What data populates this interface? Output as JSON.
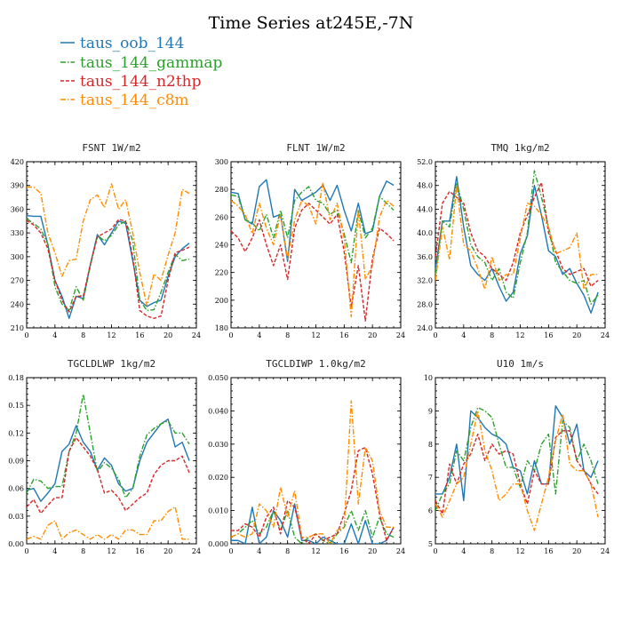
{
  "title": "Time Series at245E,-7N",
  "colors": {
    "taus_oob_144": "#1f77b4",
    "taus_144_gammap": "#2ca02c",
    "taus_144_n2thp": "#d62728",
    "taus_144_c8m": "#ff8c00"
  },
  "legend": [
    {
      "name": "taus_oob_144",
      "color": "#1f77b4",
      "style": "solid"
    },
    {
      "name": "taus_144_gammap",
      "color": "#2ca02c",
      "style": "dashdot"
    },
    {
      "name": "taus_144_n2thp",
      "color": "#d62728",
      "style": "dashed"
    },
    {
      "name": "taus_144_c8m",
      "color": "#ff8c00",
      "style": "dashdot"
    }
  ],
  "chart_data": [
    {
      "type": "line",
      "title": "FSNT   1W/m2",
      "x": [
        0,
        1,
        2,
        3,
        4,
        5,
        6,
        7,
        8,
        9,
        10,
        11,
        12,
        13,
        14,
        15,
        16,
        17,
        18,
        19,
        20,
        21,
        22,
        23
      ],
      "xlim": [
        0,
        24
      ],
      "xticks": [
        "0",
        "4",
        "8",
        "12",
        "16",
        "20",
        "24"
      ],
      "ylim": [
        210,
        420
      ],
      "yticks": [
        "210",
        "240",
        "270",
        "300",
        "330",
        "360",
        "390",
        "420"
      ],
      "series": [
        {
          "name": "taus_oob_144",
          "values": [
            352,
            351,
            351,
            315,
            270,
            250,
            222,
            250,
            247,
            290,
            328,
            315,
            330,
            345,
            342,
            295,
            245,
            237,
            242,
            245,
            275,
            300,
            310,
            317
          ]
        },
        {
          "name": "taus_144_gammap",
          "values": [
            348,
            342,
            335,
            316,
            262,
            240,
            232,
            262,
            245,
            288,
            327,
            320,
            327,
            340,
            345,
            320,
            245,
            232,
            233,
            255,
            280,
            303,
            295,
            297
          ]
        },
        {
          "name": "taus_144_n2thp",
          "values": [
            346,
            340,
            330,
            310,
            270,
            245,
            230,
            250,
            250,
            290,
            325,
            330,
            335,
            347,
            345,
            300,
            232,
            225,
            222,
            225,
            270,
            305,
            308,
            312
          ]
        },
        {
          "name": "taus_144_c8m",
          "values": [
            388,
            388,
            380,
            330,
            305,
            275,
            295,
            297,
            345,
            372,
            378,
            362,
            392,
            360,
            372,
            330,
            280,
            238,
            278,
            270,
            302,
            330,
            385,
            380
          ]
        }
      ]
    },
    {
      "type": "line",
      "title": "FLNT   1W/m2",
      "x": [
        0,
        1,
        2,
        3,
        4,
        5,
        6,
        7,
        8,
        9,
        10,
        11,
        12,
        13,
        14,
        15,
        16,
        17,
        18,
        19,
        20,
        21,
        22,
        23
      ],
      "xlim": [
        0,
        24
      ],
      "xticks": [
        "0",
        "4",
        "8",
        "12",
        "16",
        "20",
        "24"
      ],
      "ylim": [
        180,
        300
      ],
      "yticks": [
        "180",
        "200",
        "220",
        "240",
        "260",
        "280",
        "300"
      ],
      "series": [
        {
          "name": "taus_oob_144",
          "values": [
            278,
            277,
            258,
            255,
            282,
            287,
            260,
            262,
            228,
            280,
            272,
            275,
            278,
            283,
            272,
            283,
            265,
            250,
            270,
            248,
            250,
            275,
            286,
            283
          ]
        },
        {
          "name": "taus_144_gammap",
          "values": [
            276,
            275,
            258,
            256,
            250,
            262,
            245,
            265,
            245,
            272,
            278,
            282,
            272,
            270,
            262,
            265,
            248,
            227,
            265,
            245,
            252,
            275,
            270,
            265
          ]
        },
        {
          "name": "taus_144_n2thp",
          "values": [
            250,
            245,
            235,
            245,
            258,
            240,
            225,
            240,
            215,
            252,
            265,
            270,
            265,
            260,
            255,
            262,
            235,
            195,
            225,
            185,
            230,
            252,
            248,
            243
          ]
        },
        {
          "name": "taus_144_c8m",
          "values": [
            272,
            268,
            262,
            248,
            270,
            252,
            240,
            262,
            230,
            258,
            272,
            268,
            255,
            285,
            258,
            270,
            245,
            188,
            265,
            215,
            225,
            260,
            272,
            268
          ]
        }
      ]
    },
    {
      "type": "line",
      "title": "TMQ   1kg/m2",
      "x": [
        0,
        1,
        2,
        3,
        4,
        5,
        6,
        7,
        8,
        9,
        10,
        11,
        12,
        13,
        14,
        15,
        16,
        17,
        18,
        19,
        20,
        21,
        22,
        23
      ],
      "xlim": [
        0,
        24
      ],
      "xticks": [
        "0",
        "4",
        "8",
        "12",
        "16",
        "20",
        "24"
      ],
      "ylim": [
        24,
        52
      ],
      "yticks": [
        "24.0",
        "28.0",
        "32.0",
        "36.0",
        "40.0",
        "44.0",
        "48.0",
        "52.0"
      ],
      "series": [
        {
          "name": "taus_oob_144",
          "values": [
            34,
            42,
            42,
            49.5,
            41,
            34.5,
            33,
            32,
            34,
            31,
            28.5,
            30,
            36.5,
            39.5,
            48,
            43,
            37,
            36,
            33,
            34,
            31.5,
            29.5,
            26.5,
            30
          ]
        },
        {
          "name": "taus_144_gammap",
          "values": [
            33,
            42,
            41,
            48.5,
            44,
            38,
            36,
            35,
            32,
            34,
            30,
            29,
            35,
            40,
            50.5,
            46,
            41,
            35,
            33.5,
            32,
            31.5,
            32,
            28,
            29.5
          ]
        },
        {
          "name": "taus_144_n2thp",
          "values": [
            36,
            45,
            47,
            46,
            45,
            40,
            37,
            36,
            34,
            33,
            32,
            35,
            40,
            43,
            46,
            48.5,
            40,
            37,
            34,
            33,
            33.5,
            34,
            31,
            32
          ]
        },
        {
          "name": "taus_144_c8m",
          "values": [
            32,
            41,
            35.5,
            48,
            38,
            37,
            34,
            30.5,
            36,
            32,
            33,
            33,
            39,
            45,
            44.5,
            43,
            41,
            36.5,
            37,
            37.5,
            40,
            30.5,
            33,
            33
          ]
        }
      ]
    },
    {
      "type": "line",
      "title": "TGCLDLWP   1kg/m2",
      "x": [
        0,
        1,
        2,
        3,
        4,
        5,
        6,
        7,
        8,
        9,
        10,
        11,
        12,
        13,
        14,
        15,
        16,
        17,
        18,
        19,
        20,
        21,
        22,
        23
      ],
      "xlim": [
        0,
        24
      ],
      "xticks": [
        "0",
        "4",
        "8",
        "12",
        "16",
        "20",
        "24"
      ],
      "ylim": [
        0,
        0.18
      ],
      "yticks": [
        "0.00",
        "0.03",
        "0.06",
        "0.09",
        "0.12",
        "0.15",
        "0.18"
      ],
      "series": [
        {
          "name": "taus_oob_144",
          "values": [
            0.058,
            0.06,
            0.046,
            0.055,
            0.065,
            0.1,
            0.108,
            0.128,
            0.11,
            0.1,
            0.08,
            0.093,
            0.085,
            0.065,
            0.057,
            0.06,
            0.09,
            0.11,
            0.12,
            0.13,
            0.135,
            0.105,
            0.11,
            0.09
          ]
        },
        {
          "name": "taus_144_gammap",
          "values": [
            0.055,
            0.07,
            0.068,
            0.06,
            0.062,
            0.062,
            0.1,
            0.12,
            0.162,
            0.12,
            0.078,
            0.088,
            0.082,
            0.07,
            0.05,
            0.06,
            0.095,
            0.118,
            0.125,
            0.13,
            0.133,
            0.12,
            0.12,
            0.108
          ]
        },
        {
          "name": "taus_144_n2thp",
          "values": [
            0.04,
            0.048,
            0.033,
            0.042,
            0.05,
            0.05,
            0.1,
            0.115,
            0.105,
            0.095,
            0.08,
            0.055,
            0.058,
            0.05,
            0.036,
            0.043,
            0.05,
            0.055,
            0.075,
            0.085,
            0.09,
            0.09,
            0.095,
            0.077
          ]
        },
        {
          "name": "taus_144_c8m",
          "values": [
            0.005,
            0.008,
            0.005,
            0.02,
            0.025,
            0.005,
            0.012,
            0.015,
            0.01,
            0.005,
            0.01,
            0.005,
            0.01,
            0.005,
            0.015,
            0.015,
            0.01,
            0.01,
            0.025,
            0.025,
            0.035,
            0.04,
            0.005,
            0.005
          ]
        }
      ]
    },
    {
      "type": "line",
      "title": "TGCLDIWP   1.0kg/m2",
      "x": [
        0,
        1,
        2,
        3,
        4,
        5,
        6,
        7,
        8,
        9,
        10,
        11,
        12,
        13,
        14,
        15,
        16,
        17,
        18,
        19,
        20,
        21,
        22,
        23
      ],
      "xlim": [
        0,
        24
      ],
      "xticks": [
        "0",
        "4",
        "8",
        "12",
        "16",
        "20",
        "24"
      ],
      "ylim": [
        0,
        0.05
      ],
      "yticks": [
        "0.000",
        "0.010",
        "0.020",
        "0.030",
        "0.040",
        "0.050"
      ],
      "series": [
        {
          "name": "taus_oob_144",
          "values": [
            0.001,
            0.001,
            0.0,
            0.011,
            0.0,
            0.002,
            0.01,
            0.007,
            0.002,
            0.012,
            0.001,
            0.001,
            0.0,
            0.002,
            0.001,
            0.0,
            0.0,
            0.006,
            0.0,
            0.007,
            0.0,
            0.0,
            0.001,
            0.005
          ]
        },
        {
          "name": "taus_144_gammap",
          "values": [
            0.002,
            0.003,
            0.005,
            0.007,
            0.003,
            0.005,
            0.01,
            0.004,
            0.01,
            0.002,
            0.0,
            0.002,
            0.003,
            0.001,
            0.0,
            0.003,
            0.005,
            0.01,
            0.004,
            0.01,
            0.002,
            0.008,
            0.003,
            0.002
          ]
        },
        {
          "name": "taus_144_n2thp",
          "values": [
            0.004,
            0.004,
            0.006,
            0.005,
            0.002,
            0.008,
            0.011,
            0.003,
            0.013,
            0.011,
            0.002,
            0.0,
            0.003,
            0.001,
            0.002,
            0.003,
            0.009,
            0.016,
            0.028,
            0.029,
            0.021,
            0.009,
            0.001,
            0.005
          ]
        },
        {
          "name": "taus_144_c8m",
          "values": [
            0.002,
            0.003,
            0.002,
            0.003,
            0.012,
            0.01,
            0.005,
            0.017,
            0.008,
            0.016,
            0.002,
            0.002,
            0.003,
            0.003,
            0.0,
            0.004,
            0.005,
            0.043,
            0.012,
            0.029,
            0.025,
            0.01,
            0.005,
            0.005
          ]
        }
      ]
    },
    {
      "type": "line",
      "title": "U10   1m/s",
      "x": [
        0,
        1,
        2,
        3,
        4,
        5,
        6,
        7,
        8,
        9,
        10,
        11,
        12,
        13,
        14,
        15,
        16,
        17,
        18,
        19,
        20,
        21,
        22,
        23
      ],
      "xlim": [
        0,
        24
      ],
      "xticks": [
        "0",
        "4",
        "8",
        "12",
        "16",
        "20",
        "24"
      ],
      "ylim": [
        5,
        10
      ],
      "yticks": [
        "5",
        "6",
        "7",
        "8",
        "9",
        "10"
      ],
      "series": [
        {
          "name": "taus_oob_144",
          "values": [
            6.5,
            6.5,
            7.0,
            8.0,
            6.3,
            9.0,
            8.8,
            8.5,
            8.3,
            8.2,
            8.0,
            7.3,
            7.2,
            6.5,
            7.5,
            6.8,
            6.8,
            9.15,
            8.8,
            8.0,
            8.6,
            7.2,
            7.0,
            7.5
          ]
        },
        {
          "name": "taus_144_gammap",
          "values": [
            6.0,
            6.5,
            6.8,
            7.8,
            7.5,
            8.5,
            9.1,
            9.0,
            8.8,
            8.0,
            7.3,
            7.3,
            6.7,
            7.5,
            7.2,
            8.0,
            8.3,
            6.5,
            8.7,
            8.5,
            7.5,
            8.0,
            7.5,
            6.8
          ]
        },
        {
          "name": "taus_144_n2thp",
          "values": [
            6.3,
            5.9,
            7.4,
            6.8,
            7.4,
            7.7,
            8.3,
            7.5,
            8.0,
            7.7,
            7.8,
            7.7,
            6.8,
            6.2,
            7.2,
            6.8,
            6.8,
            8.2,
            8.4,
            8.4,
            7.5,
            7.2,
            6.8,
            6.5
          ]
        },
        {
          "name": "taus_144_c8m",
          "values": [
            6.2,
            5.8,
            6.3,
            6.8,
            7.0,
            8.0,
            9.0,
            7.8,
            7.2,
            6.3,
            6.5,
            6.8,
            6.8,
            6.0,
            5.4,
            6.2,
            7.0,
            8.1,
            8.9,
            7.4,
            7.2,
            7.2,
            6.8,
            5.8
          ]
        }
      ]
    }
  ]
}
